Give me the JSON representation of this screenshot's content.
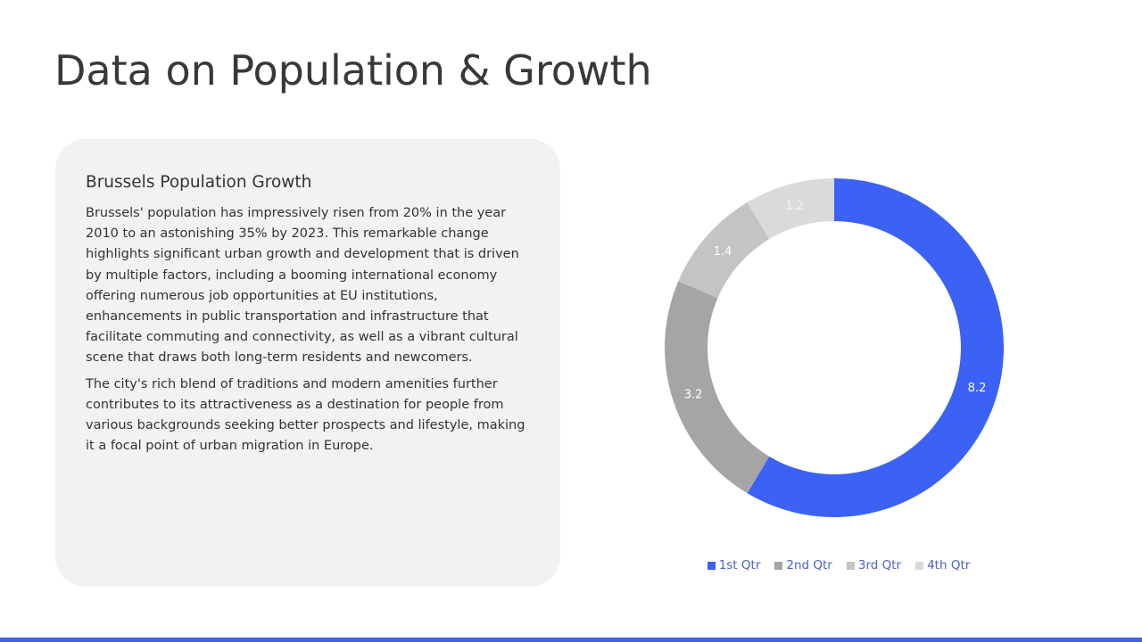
{
  "slide": {
    "title": "Data on Population & Growth"
  },
  "card": {
    "heading": "Brussels Population Growth",
    "paragraphs": [
      "Brussels' population has impressively risen from 20% in the year 2010 to an astonishing 35% by 2023. This remarkable change highlights significant urban growth and development that is driven by multiple factors, including a booming international economy offering numerous job opportunities at EU institutions, enhancements in public transportation and infrastructure that facilitate commuting and connectivity, as well as a vibrant cultural scene that draws both long-term residents and newcomers.",
      "The city's rich blend of traditions and modern amenities further contributes to its attractiveness as a destination for people from various backgrounds seeking better prospects and lifestyle, making it a focal point of urban migration in Europe."
    ]
  },
  "colors": {
    "accent": "#3b62f5",
    "card_background": "#f2f2f2"
  },
  "chart_data": {
    "type": "pie",
    "variant": "doughnut",
    "categories": [
      "1st Qtr",
      "2nd Qtr",
      "3rd Qtr",
      "4th Qtr"
    ],
    "values": [
      8.2,
      3.2,
      1.4,
      1.2
    ],
    "colors": [
      "#3b62f5",
      "#a5a5a5",
      "#c4c4c4",
      "#dadada"
    ],
    "label_colors": [
      "#ffffff",
      "#ffffff",
      "#ffffff",
      "#f4f4f4"
    ],
    "data_labels": [
      "8.2",
      "3.2",
      "1.4",
      "1.2"
    ],
    "legend_position": "bottom",
    "start_angle": "12 o'clock",
    "direction": "clockwise"
  }
}
